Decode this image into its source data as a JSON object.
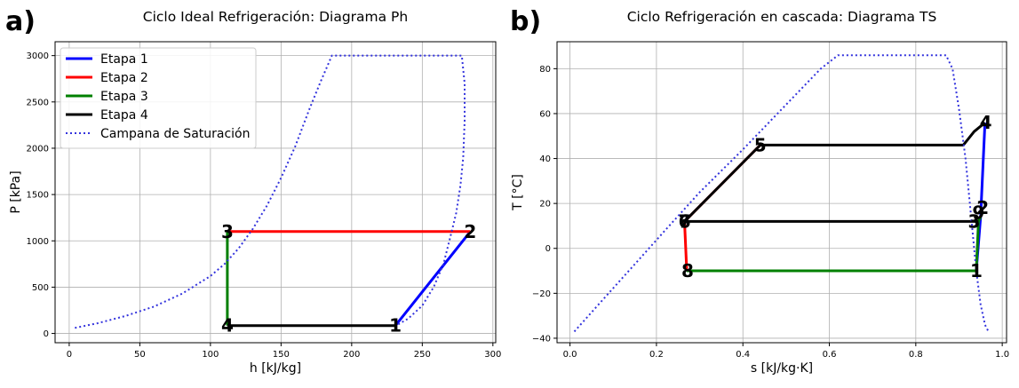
{
  "chart_data": [
    {
      "type": "line",
      "panel_label": "a)",
      "title": "Ciclo Ideal Refrigeración: Diagrama Ph",
      "xlabel": "h [kJ/kg]",
      "ylabel": "P [kPa]",
      "xlim": [
        -10,
        302
      ],
      "ylim": [
        -100,
        3150
      ],
      "xticks": [
        0,
        50,
        100,
        150,
        200,
        250,
        300
      ],
      "yticks": [
        0,
        500,
        1000,
        1500,
        2000,
        2500,
        3000
      ],
      "grid": true,
      "legend_position": "top-left",
      "series": [
        {
          "name": "Etapa 1",
          "color": "#0000ff",
          "style": "solid",
          "x": [
            231,
            284
          ],
          "y": [
            85,
            1100
          ]
        },
        {
          "name": "Etapa 2",
          "color": "#ff0000",
          "style": "solid",
          "x": [
            284,
            112
          ],
          "y": [
            1100,
            1100
          ]
        },
        {
          "name": "Etapa 3",
          "color": "#008000",
          "style": "solid",
          "x": [
            112,
            112
          ],
          "y": [
            1100,
            85
          ]
        },
        {
          "name": "Etapa 4",
          "color": "#000000",
          "style": "solid",
          "x": [
            112,
            231
          ],
          "y": [
            85,
            85
          ]
        },
        {
          "name": "Campana de Saturación",
          "color": "#3333dd",
          "style": "dotted",
          "x": [
            4,
            20,
            40,
            60,
            80,
            100,
            110,
            120,
            130,
            140,
            150,
            160,
            170,
            178,
            186,
            200,
            230,
            260,
            278,
            280,
            280,
            279,
            277,
            274,
            270,
            265,
            258,
            250,
            240,
            232
          ],
          "y": [
            60,
            110,
            190,
            290,
            430,
            620,
            750,
            920,
            1130,
            1380,
            1680,
            2020,
            2420,
            2720,
            3000,
            3000,
            3000,
            3000,
            3000,
            2700,
            2300,
            1900,
            1600,
            1300,
            1050,
            750,
            500,
            300,
            160,
            90
          ]
        }
      ],
      "point_labels": [
        {
          "text": "1",
          "x": 231,
          "y": 85
        },
        {
          "text": "2",
          "x": 284,
          "y": 1100
        },
        {
          "text": "3",
          "x": 112,
          "y": 1100
        },
        {
          "text": "4",
          "x": 112,
          "y": 85
        }
      ]
    },
    {
      "type": "line",
      "panel_label": "b)",
      "title": "Ciclo Refrigeración en cascada: Diagrama TS",
      "xlabel": "s [kJ/kg·K]",
      "ylabel": "T [°C]",
      "xlim": [
        -0.03,
        1.01
      ],
      "ylim": [
        -42,
        92
      ],
      "xticks": [
        0.0,
        0.2,
        0.4,
        0.6,
        0.8,
        1.0
      ],
      "yticks": [
        -40,
        -20,
        0,
        20,
        40,
        60,
        80
      ],
      "grid": true,
      "series": [
        {
          "name": "Etapa 1",
          "color": "#0000ff",
          "style": "solid",
          "x": [
            0.94,
            0.95,
            0.96
          ],
          "y": [
            -10,
            14,
            56
          ]
        },
        {
          "name": "Etapa 2",
          "color": "#ff0000",
          "style": "solid",
          "x": [
            0.44,
            0.265,
            0.27
          ],
          "y": [
            46,
            12,
            -10
          ]
        },
        {
          "name": "Etapa 3",
          "color": "#008000",
          "style": "solid",
          "x": [
            0.27,
            0.94,
            0.945,
            0.95
          ],
          "y": [
            -10,
            -10,
            12,
            14
          ]
        },
        {
          "name": "Etapa 4",
          "color": "#000000",
          "style": "solid",
          "x": [
            0.96,
            0.935,
            0.91,
            0.44,
            0.265,
            0.265,
            0.945
          ],
          "y": [
            56,
            52,
            46,
            46,
            12,
            12,
            12
          ]
        },
        {
          "name": "Campana de Saturación",
          "color": "#3333dd",
          "style": "dotted",
          "x": [
            0.01,
            0.08,
            0.15,
            0.22,
            0.3,
            0.4,
            0.5,
            0.58,
            0.62,
            0.7,
            0.8,
            0.87,
            0.885,
            0.9,
            0.915,
            0.93,
            0.94,
            0.95,
            0.96,
            0.968
          ],
          "y": [
            -37,
            -22,
            -7,
            8,
            25,
            44,
            64,
            80,
            86,
            86,
            86,
            86,
            80,
            62,
            40,
            10,
            -10,
            -25,
            -34,
            -37
          ]
        }
      ],
      "point_labels": [
        {
          "text": "1",
          "x": 0.94,
          "y": -10
        },
        {
          "text": "2",
          "x": 0.955,
          "y": 18
        },
        {
          "text": "3",
          "x": 0.935,
          "y": 12
        },
        {
          "text": "4",
          "x": 0.962,
          "y": 56
        },
        {
          "text": "5",
          "x": 0.44,
          "y": 46
        },
        {
          "text": "6",
          "x": 0.265,
          "y": 12
        },
        {
          "text": "7",
          "x": 0.265,
          "y": 12
        },
        {
          "text": "8",
          "x": 0.272,
          "y": -10
        },
        {
          "text": "9",
          "x": 0.945,
          "y": 16
        }
      ]
    }
  ]
}
